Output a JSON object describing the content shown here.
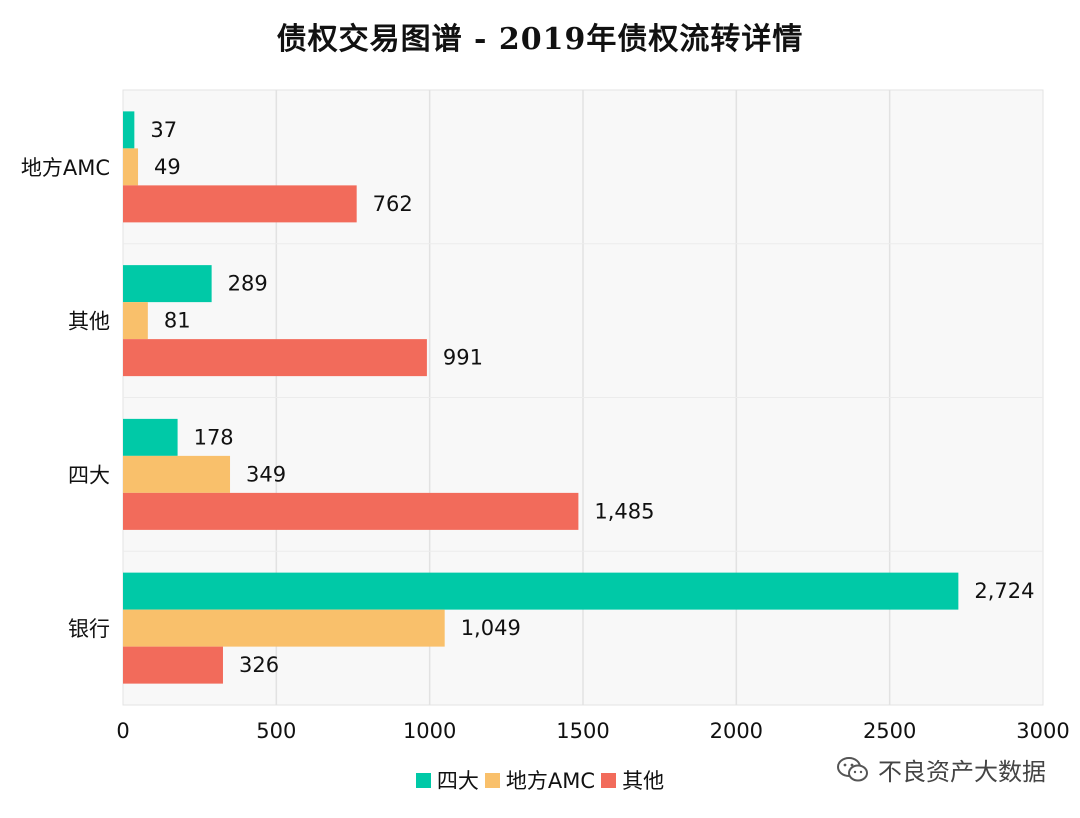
{
  "chart_data": {
    "type": "bar",
    "orientation": "horizontal",
    "title": "债权交易图谱 - 2019年债权流转详情",
    "categories": [
      "地方AMC",
      "其他",
      "四大",
      "银行"
    ],
    "series": [
      {
        "name": "四大",
        "color": "#00C9A7",
        "values": [
          37,
          289,
          178,
          2724
        ],
        "labels": [
          "37",
          "289",
          "178",
          "2,724"
        ]
      },
      {
        "name": "地方AMC",
        "color": "#F9C06B",
        "values": [
          49,
          81,
          349,
          1049
        ],
        "labels": [
          "49",
          "81",
          "349",
          "1,049"
        ]
      },
      {
        "name": "其他",
        "color": "#F26B5B",
        "values": [
          762,
          991,
          1485,
          326
        ],
        "labels": [
          "762",
          "991",
          "1,485",
          "326"
        ]
      }
    ],
    "xlim": [
      0,
      3000
    ],
    "xticks": [
      0,
      500,
      1000,
      1500,
      2000,
      2500,
      3000
    ],
    "xlabel": "",
    "ylabel": "",
    "grid": true,
    "legend_position": "bottom"
  },
  "watermark": {
    "text": "不良资产大数据",
    "icon": "wechat-icon"
  }
}
